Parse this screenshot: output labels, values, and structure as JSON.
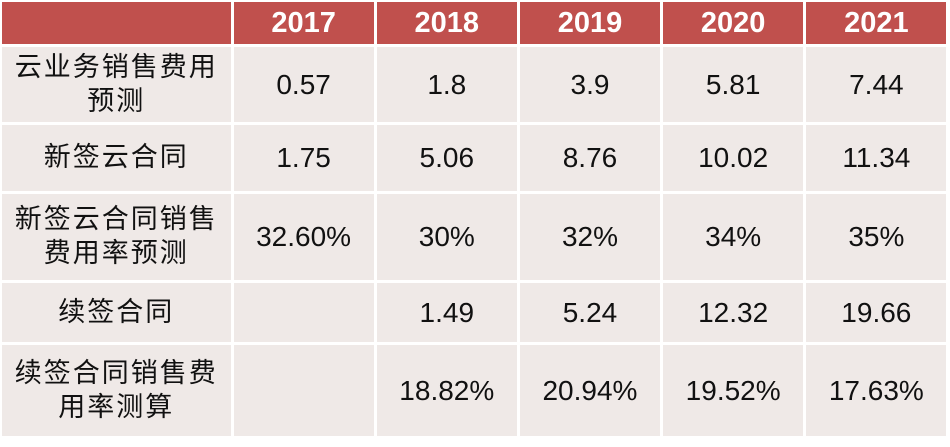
{
  "header": {
    "corner": "",
    "years": [
      "2017",
      "2018",
      "2019",
      "2020",
      "2021"
    ]
  },
  "rows": [
    {
      "label_lines": [
        "云业务销售费用",
        "预测"
      ],
      "values": [
        "0.57",
        "1.8",
        "3.9",
        "5.81",
        "7.44"
      ]
    },
    {
      "label_lines": [
        "新签云合同"
      ],
      "values": [
        "1.75",
        "5.06",
        "8.76",
        "10.02",
        "11.34"
      ]
    },
    {
      "label_lines": [
        "新签云合同销售",
        "费用率预测"
      ],
      "values": [
        "32.60%",
        "30%",
        "32%",
        "34%",
        "35%"
      ]
    },
    {
      "label_lines": [
        "续签合同"
      ],
      "values": [
        "",
        "1.49",
        "5.24",
        "12.32",
        "19.66"
      ]
    },
    {
      "label_lines": [
        "续签合同销售费",
        "用率测算"
      ],
      "values": [
        "",
        "18.82%",
        "20.94%",
        "19.52%",
        "17.63%"
      ]
    }
  ],
  "colors": {
    "header_bg": "#c0504d",
    "header_text": "#ffffff",
    "cell_bg": "#efe9e7",
    "cell_border": "#ffffff"
  }
}
